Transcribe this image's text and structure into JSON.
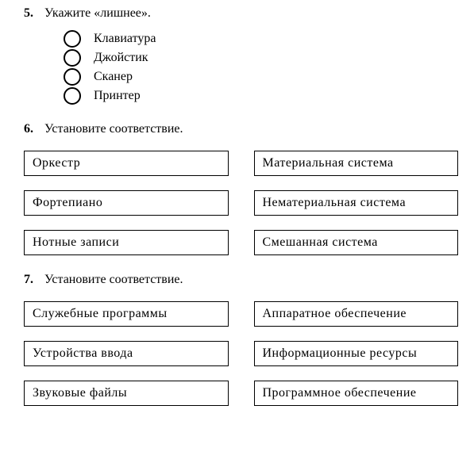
{
  "q5": {
    "number": "5.",
    "prompt": "Укажите «лишнее».",
    "options": [
      "Клавиатура",
      "Джойстик",
      "Сканер",
      "Принтер"
    ]
  },
  "q6": {
    "number": "6.",
    "prompt": "Установите соответствие.",
    "left": [
      "Оркестр",
      "Фортепиано",
      "Нотные записи"
    ],
    "right": [
      "Материальная система",
      "Нематериальная система",
      "Смешанная система"
    ]
  },
  "q7": {
    "number": "7.",
    "prompt": "Установите соответствие.",
    "left": [
      "Служебные программы",
      "Устройства ввода",
      "Звуковые файлы"
    ],
    "right": [
      "Аппаратное обеспечение",
      "Информационные ресурсы",
      "Программное обеспечение"
    ]
  }
}
